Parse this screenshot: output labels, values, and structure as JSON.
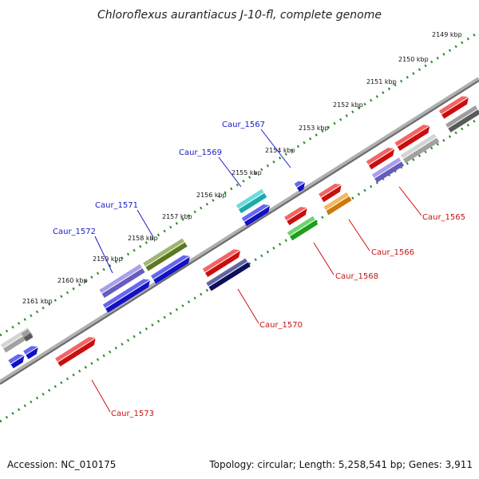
{
  "title": "Chloroflexus aurantiacus J-10-fl, complete genome",
  "footer": {
    "accession": "Accession: NC_010175",
    "topology": "Topology: circular; Length: 5,258,541 bp; Genes: 3,911"
  },
  "ticks": [
    "2149 kbp",
    "2150 kbp",
    "2151 kbp",
    "2152 kbp",
    "2153 kbp",
    "2154 kbp",
    "2155 kbp",
    "2156 kbp",
    "2157 kbp",
    "2158 kbp",
    "2159 kbp",
    "2160 kbp",
    "2161 kbp"
  ],
  "colors": {
    "backbone": "#8c8c8c",
    "dots": "#2a8a2a",
    "label_upper": "#1a1ac8",
    "label_lower": "#cc1010"
  },
  "genes": [
    {
      "name": "Caur_1567",
      "label": "Caur_1567",
      "color": "#1414e6"
    },
    {
      "name": "Caur_1569",
      "label": "Caur_1569",
      "color": "#20c8c8"
    },
    {
      "name": "Caur_1571",
      "label": "Caur_1571",
      "color": "#6b8e23"
    },
    {
      "name": "Caur_1572",
      "label": "Caur_1572",
      "color": "#7a6be0"
    },
    {
      "name": "Caur_1565",
      "label": "Caur_1565",
      "color": "#ee1111"
    },
    {
      "name": "Caur_1566",
      "label": "Caur_1566",
      "color": "#ee1111"
    },
    {
      "name": "Caur_1568",
      "label": "Caur_1568",
      "color": "#ee1111"
    },
    {
      "name": "Caur_1570",
      "label": "Caur_1570",
      "color": "#ee1111"
    },
    {
      "name": "Caur_1573",
      "label": "Caur_1573",
      "color": "#ee1111"
    }
  ]
}
